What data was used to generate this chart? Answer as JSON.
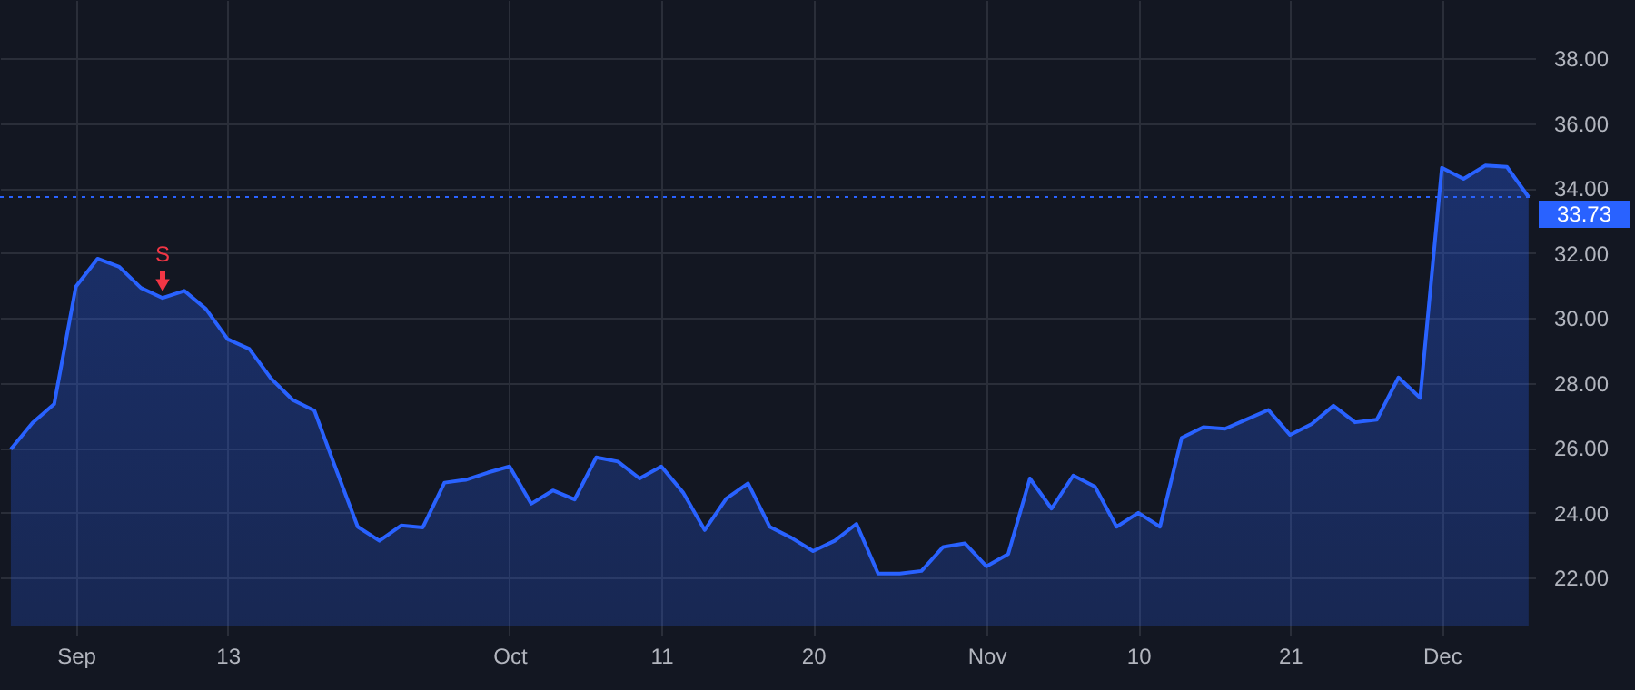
{
  "chart_data": {
    "type": "area",
    "categories": [
      null,
      null,
      null,
      "Sep",
      null,
      null,
      null,
      null,
      null,
      null,
      "13",
      null,
      null,
      null,
      null,
      null,
      null,
      null,
      null,
      null,
      null,
      null,
      null,
      "Oct",
      null,
      null,
      null,
      null,
      null,
      null,
      "11",
      null,
      null,
      null,
      null,
      null,
      null,
      "20",
      null,
      null,
      null,
      null,
      null,
      null,
      null,
      "Nov",
      null,
      null,
      null,
      null,
      null,
      null,
      "10",
      null,
      null,
      null,
      null,
      null,
      null,
      "21",
      null,
      null,
      null,
      null,
      null,
      null,
      "Dec",
      null,
      null,
      null,
      null
    ],
    "series": [
      {
        "color": "#2962ff",
        "values": [
          25.96,
          26.77,
          27.35,
          30.97,
          31.83,
          31.58,
          30.93,
          30.62,
          30.84,
          30.28,
          29.35,
          29.05,
          28.14,
          27.48,
          27.15,
          25.34,
          23.57,
          23.14,
          23.61,
          23.55,
          24.93,
          25.02,
          25.24,
          25.43,
          24.28,
          24.69,
          24.41,
          25.71,
          25.58,
          25.06,
          25.43,
          24.63,
          23.47,
          24.44,
          24.91,
          23.57,
          23.23,
          22.82,
          23.14,
          23.66,
          22.13,
          22.13,
          22.21,
          22.95,
          23.06,
          22.35,
          22.73,
          25.06,
          24.13,
          25.15,
          24.81,
          23.57,
          24.0,
          23.57,
          26.31,
          26.64,
          26.59,
          26.88,
          27.17,
          26.4,
          26.74,
          27.3,
          26.79,
          26.87,
          28.17,
          27.54,
          34.63,
          34.29,
          34.7,
          34.66,
          33.73
        ]
      }
    ],
    "ylim": [
      20.5,
      39.8
    ],
    "yticks": [
      {
        "value": 22,
        "label": "22.00"
      },
      {
        "value": 24,
        "label": "24.00"
      },
      {
        "value": 26,
        "label": "26.00"
      },
      {
        "value": 28,
        "label": "28.00"
      },
      {
        "value": 30,
        "label": "30.00"
      },
      {
        "value": 32,
        "label": "32.00"
      },
      {
        "value": 34,
        "label": "34.00"
      },
      {
        "value": 36,
        "label": "36.00"
      },
      {
        "value": 38,
        "label": "38.00"
      }
    ],
    "ref_lines": [
      {
        "axis": "y",
        "value": 33.73,
        "label": "33.73",
        "color": "#2962ff",
        "line_style": "dotted"
      }
    ],
    "annotations": [
      {
        "text": "S",
        "y": 30.62
      }
    ],
    "grid": true
  }
}
